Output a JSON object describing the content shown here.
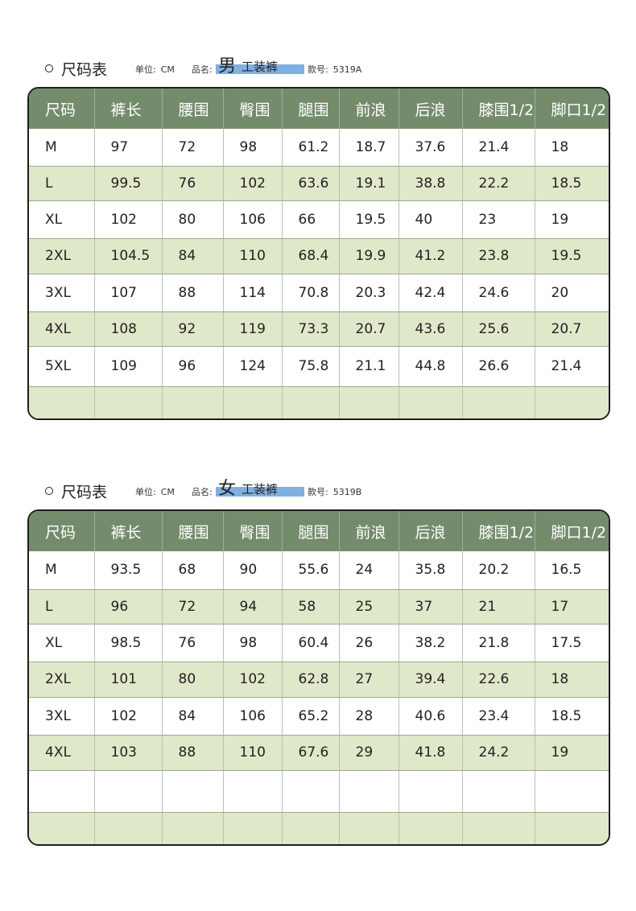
{
  "sections": [
    {
      "title": "尺码表",
      "unit_label": "单位:",
      "unit_value": "CM",
      "product_label": "品名:",
      "gender": "男",
      "product_name": "工装裤",
      "code_label": "款号:",
      "code_value": "5319A",
      "headers": [
        "尺码",
        "裤长",
        "腰围",
        "臀围",
        "腿围",
        "前浪",
        "后浪",
        "膝围1/2",
        "脚口1/2"
      ],
      "rows": [
        [
          "M",
          "97",
          "72",
          "98",
          "61.2",
          "18.7",
          "37.6",
          "21.4",
          "18"
        ],
        [
          "L",
          "99.5",
          "76",
          "102",
          "63.6",
          "19.1",
          "38.8",
          "22.2",
          "18.5"
        ],
        [
          "XL",
          "102",
          "80",
          "106",
          "66",
          "19.5",
          "40",
          "23",
          "19"
        ],
        [
          "2XL",
          "104.5",
          "84",
          "110",
          "68.4",
          "19.9",
          "41.2",
          "23.8",
          "19.5"
        ],
        [
          "3XL",
          "107",
          "88",
          "114",
          "70.8",
          "20.3",
          "42.4",
          "24.6",
          "20"
        ],
        [
          "4XL",
          "108",
          "92",
          "119",
          "73.3",
          "20.7",
          "43.6",
          "25.6",
          "20.7"
        ],
        [
          "5XL",
          "109",
          "96",
          "124",
          "75.8",
          "21.1",
          "44.8",
          "26.6",
          "21.4"
        ],
        [
          "",
          "",
          "",
          "",
          "",
          "",
          "",
          "",
          ""
        ]
      ]
    },
    {
      "title": "尺码表",
      "unit_label": "单位:",
      "unit_value": "CM",
      "product_label": "品名:",
      "gender": "女",
      "product_name": "工装裤",
      "code_label": "款号:",
      "code_value": "5319B",
      "headers": [
        "尺码",
        "裤长",
        "腰围",
        "臀围",
        "腿围",
        "前浪",
        "后浪",
        "膝围1/2",
        "脚口1/2"
      ],
      "rows": [
        [
          "M",
          "93.5",
          "68",
          "90",
          "55.6",
          "24",
          "35.8",
          "20.2",
          "16.5"
        ],
        [
          "L",
          "96",
          "72",
          "94",
          "58",
          "25",
          "37",
          "21",
          "17"
        ],
        [
          "XL",
          "98.5",
          "76",
          "98",
          "60.4",
          "26",
          "38.2",
          "21.8",
          "17.5"
        ],
        [
          "2XL",
          "101",
          "80",
          "102",
          "62.8",
          "27",
          "39.4",
          "22.6",
          "18"
        ],
        [
          "3XL",
          "102",
          "84",
          "106",
          "65.2",
          "28",
          "40.6",
          "23.4",
          "18.5"
        ],
        [
          "4XL",
          "103",
          "88",
          "110",
          "67.6",
          "29",
          "41.8",
          "24.2",
          "19"
        ],
        [
          "",
          "",
          "",
          "",
          "",
          "",
          "",
          "",
          ""
        ],
        [
          "",
          "",
          "",
          "",
          "",
          "",
          "",
          "",
          ""
        ]
      ]
    }
  ],
  "colors": {
    "header_bg": "#758c6c",
    "row_green": "#dfe8c9",
    "highlight": "#7fb0e0"
  }
}
